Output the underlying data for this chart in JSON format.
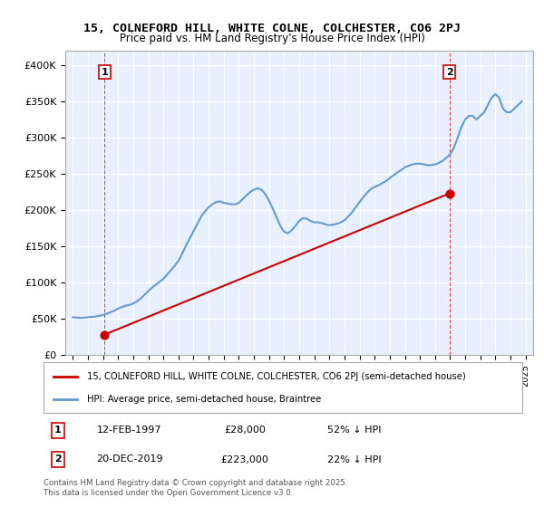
{
  "title_line1": "15, COLNEFORD HILL, WHITE COLNE, COLCHESTER, CO6 2PJ",
  "title_line2": "Price paid vs. HM Land Registry's House Price Index (HPI)",
  "ylabel": "",
  "bg_color": "#e8f0ff",
  "plot_bg_color": "#e8f0ff",
  "red_color": "#cc0000",
  "blue_color": "#6699cc",
  "transaction1_date": "12-FEB-1997",
  "transaction1_price": 28000,
  "transaction1_label": "52% ↓ HPI",
  "transaction2_date": "20-DEC-2019",
  "transaction2_price": 223000,
  "transaction2_label": "22% ↓ HPI",
  "legend_entry1": "15, COLNEFORD HILL, WHITE COLNE, COLCHESTER, CO6 2PJ (semi-detached house)",
  "legend_entry2": "HPI: Average price, semi-detached house, Braintree",
  "footnote": "Contains HM Land Registry data © Crown copyright and database right 2025.\nThis data is licensed under the Open Government Licence v3.0.",
  "ylim": [
    0,
    420000
  ],
  "yticks": [
    0,
    50000,
    100000,
    150000,
    200000,
    250000,
    300000,
    350000,
    400000
  ],
  "ytick_labels": [
    "£0",
    "£50K",
    "£100K",
    "£150K",
    "£200K",
    "£250K",
    "£300K",
    "£350K",
    "£400K"
  ],
  "hpi_years": [
    1995.0,
    1995.25,
    1995.5,
    1995.75,
    1996.0,
    1996.25,
    1996.5,
    1996.75,
    1997.0,
    1997.25,
    1997.5,
    1997.75,
    1998.0,
    1998.25,
    1998.5,
    1998.75,
    1999.0,
    1999.25,
    1999.5,
    1999.75,
    2000.0,
    2000.25,
    2000.5,
    2000.75,
    2001.0,
    2001.25,
    2001.5,
    2001.75,
    2002.0,
    2002.25,
    2002.5,
    2002.75,
    2003.0,
    2003.25,
    2003.5,
    2003.75,
    2004.0,
    2004.25,
    2004.5,
    2004.75,
    2005.0,
    2005.25,
    2005.5,
    2005.75,
    2006.0,
    2006.25,
    2006.5,
    2006.75,
    2007.0,
    2007.25,
    2007.5,
    2007.75,
    2008.0,
    2008.25,
    2008.5,
    2008.75,
    2009.0,
    2009.25,
    2009.5,
    2009.75,
    2010.0,
    2010.25,
    2010.5,
    2010.75,
    2011.0,
    2011.25,
    2011.5,
    2011.75,
    2012.0,
    2012.25,
    2012.5,
    2012.75,
    2013.0,
    2013.25,
    2013.5,
    2013.75,
    2014.0,
    2014.25,
    2014.5,
    2014.75,
    2015.0,
    2015.25,
    2015.5,
    2015.75,
    2016.0,
    2016.25,
    2016.5,
    2016.75,
    2017.0,
    2017.25,
    2017.5,
    2017.75,
    2018.0,
    2018.25,
    2018.5,
    2018.75,
    2019.0,
    2019.25,
    2019.5,
    2019.75,
    2020.0,
    2020.25,
    2020.5,
    2020.75,
    2021.0,
    2021.25,
    2021.5,
    2021.75,
    2022.0,
    2022.25,
    2022.5,
    2022.75,
    2023.0,
    2023.25,
    2023.5,
    2023.75,
    2024.0,
    2024.25,
    2024.5,
    2024.75
  ],
  "hpi_values": [
    52000,
    51500,
    51000,
    51500,
    52000,
    52500,
    53000,
    54000,
    55000,
    57000,
    59000,
    61000,
    64000,
    66000,
    68000,
    69000,
    71000,
    74000,
    78000,
    83000,
    88000,
    93000,
    97000,
    101000,
    105000,
    111000,
    117000,
    123000,
    130000,
    140000,
    151000,
    161000,
    171000,
    181000,
    191000,
    198000,
    204000,
    208000,
    211000,
    212000,
    210000,
    209000,
    208000,
    208000,
    210000,
    215000,
    220000,
    225000,
    228000,
    230000,
    228000,
    222000,
    213000,
    202000,
    190000,
    178000,
    170000,
    168000,
    172000,
    178000,
    185000,
    189000,
    188000,
    185000,
    183000,
    183000,
    182000,
    180000,
    179000,
    180000,
    181000,
    183000,
    186000,
    191000,
    197000,
    204000,
    211000,
    218000,
    224000,
    229000,
    232000,
    234000,
    237000,
    240000,
    244000,
    248000,
    252000,
    255000,
    259000,
    261000,
    263000,
    264000,
    264000,
    263000,
    262000,
    262000,
    263000,
    265000,
    268000,
    272000,
    277000,
    286000,
    300000,
    315000,
    325000,
    330000,
    330000,
    325000,
    330000,
    335000,
    345000,
    355000,
    360000,
    355000,
    340000,
    335000,
    335000,
    340000,
    345000,
    350000
  ],
  "sale_years": [
    1997.1,
    2019.96
  ],
  "sale_prices": [
    28000,
    223000
  ],
  "xlim_left": 1994.5,
  "xlim_right": 2025.5,
  "xticks": [
    1995,
    1996,
    1997,
    1998,
    1999,
    2000,
    2001,
    2002,
    2003,
    2004,
    2005,
    2006,
    2007,
    2008,
    2009,
    2010,
    2011,
    2012,
    2013,
    2014,
    2015,
    2016,
    2017,
    2018,
    2019,
    2020,
    2021,
    2022,
    2023,
    2024,
    2025
  ]
}
